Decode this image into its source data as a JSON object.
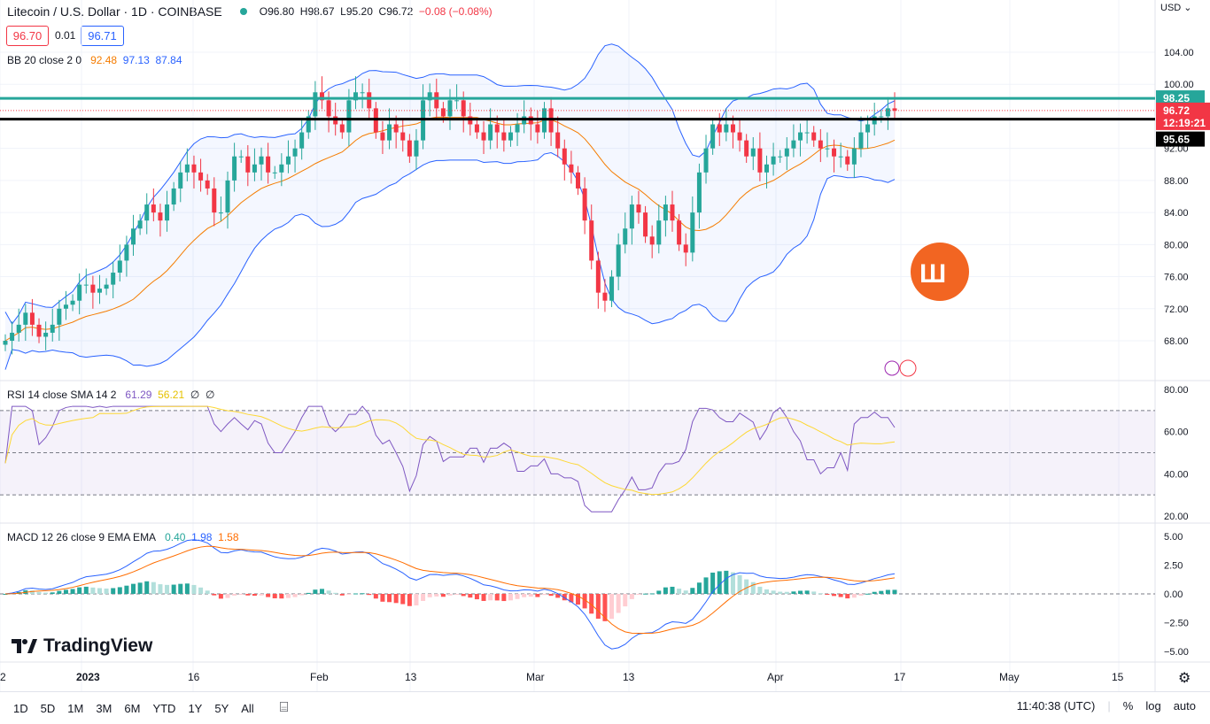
{
  "header": {
    "title": "Litecoin / U.S. Dollar · 1D · COINBASE",
    "ohlc": {
      "o": "O96.80",
      "h": "H98.67",
      "l": "L95.20",
      "c": "C96.72",
      "chg": "−0.08 (−0.08%)"
    },
    "bid": "96.70",
    "spread": "0.01",
    "ask": "96.71",
    "currency": "USD"
  },
  "indicators": {
    "bb": {
      "label": "BB 20 close 2 0",
      "v1": "92.48",
      "v2": "97.13",
      "v3": "87.84"
    },
    "rsi": {
      "label": "RSI 14 close SMA 14 2",
      "v1": "61.29",
      "v2": "56.21",
      "v3": "∅",
      "v4": "∅"
    },
    "macd": {
      "label": "MACD 12 26 close 9 EMA EMA",
      "v1": "0.40",
      "v2": "1.98",
      "v3": "1.58"
    }
  },
  "price_axis": [
    "104.00",
    "100.00",
    "92.00",
    "88.00",
    "84.00",
    "80.00",
    "76.00",
    "72.00",
    "68.00"
  ],
  "price_tags": {
    "level": "98.25",
    "last": "96.72",
    "countdown": "12:19:21",
    "line": "95.65"
  },
  "rsi_axis": [
    "80.00",
    "60.00",
    "40.00",
    "20.00"
  ],
  "macd_axis": [
    "5.00",
    "2.50",
    "0.00",
    "−2.50",
    "−5.00"
  ],
  "time_axis": [
    "2",
    "2023",
    "16",
    "Feb",
    "13",
    "Mar",
    "13",
    "Apr",
    "17",
    "May",
    "15"
  ],
  "timeframes": [
    "1D",
    "5D",
    "1M",
    "3M",
    "6M",
    "YTD",
    "1Y",
    "5Y",
    "All"
  ],
  "clock": "11:40:38 (UTC)",
  "right_controls": [
    "%",
    "log",
    "auto"
  ],
  "brand": "TradingView",
  "colors": {
    "up": "#26a69a",
    "down": "#f23645",
    "bb_band": "#2962ff",
    "bb_basis": "#f57c00",
    "rsi": "#7e57c2",
    "rsi_ma": "#fdd835",
    "macd": "#2962ff",
    "signal": "#ff6d00",
    "level": "#26a69a"
  }
}
